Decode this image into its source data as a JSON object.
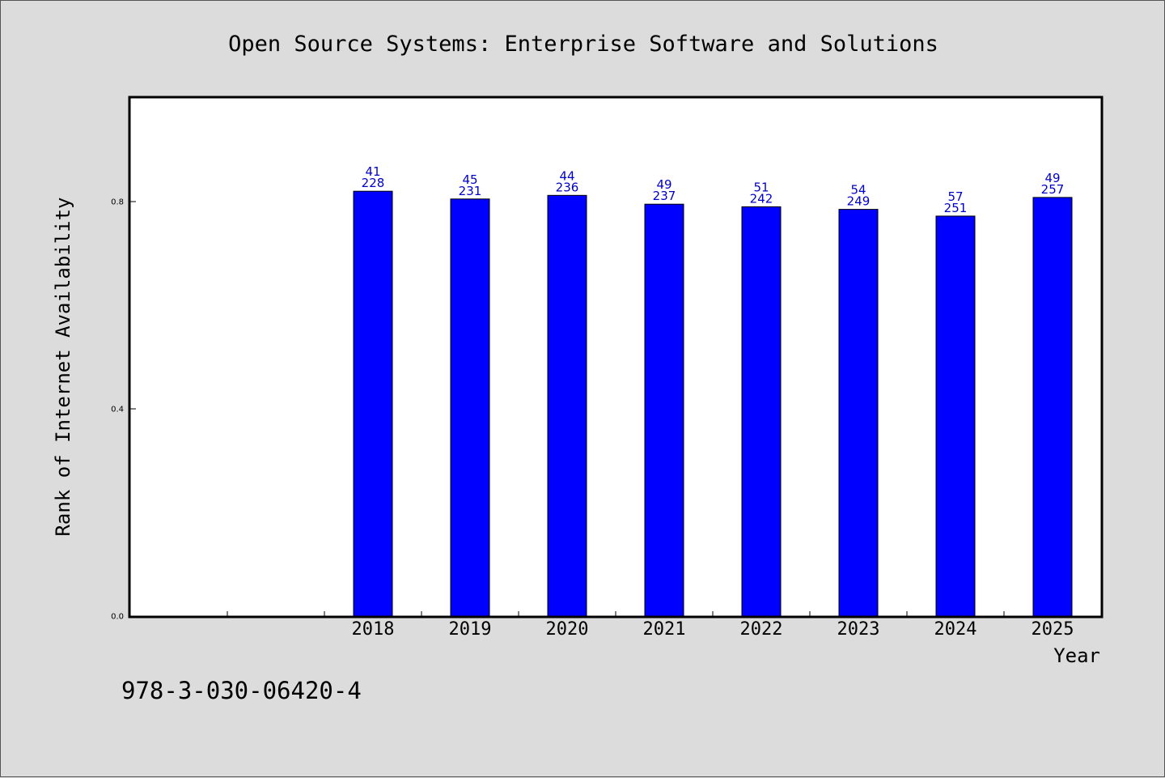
{
  "chart_data": {
    "type": "bar",
    "title": "Open Source Systems: Enterprise Software and Solutions",
    "xlabel": "Year",
    "ylabel": "Rank of Internet Availability",
    "categories": [
      "",
      "",
      "2018",
      "2019",
      "2020",
      "2021",
      "2022",
      "2023",
      "2024",
      "2025"
    ],
    "values": [
      null,
      null,
      0.82,
      0.805,
      0.812,
      0.795,
      0.79,
      0.785,
      0.772,
      0.808
    ],
    "bar_labels_top": [
      "",
      "",
      "41",
      "45",
      "44",
      "49",
      "51",
      "54",
      "57",
      "49"
    ],
    "bar_labels_bottom": [
      "",
      "",
      "228",
      "231",
      "236",
      "237",
      "242",
      "249",
      "251",
      "257"
    ],
    "ylim": [
      0,
      1.0
    ],
    "yticks": [
      0.0,
      0.4,
      0.8
    ],
    "ytick_labels": [
      "0.0",
      "0.4",
      "0.8"
    ],
    "grid": false,
    "bar_color": "#0000ff",
    "bar_label_color": "#0000cc"
  },
  "footnote": "978-3-030-06420-4",
  "colors": {
    "background": "#dcdcdc",
    "plot_background": "#ffffff"
  }
}
